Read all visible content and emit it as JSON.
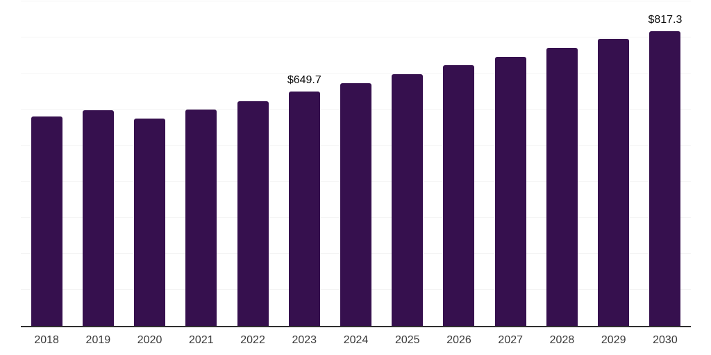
{
  "chart_data": {
    "type": "bar",
    "title": "",
    "xlabel": "",
    "ylabel": "",
    "categories": [
      "2018",
      "2019",
      "2020",
      "2021",
      "2022",
      "2023",
      "2024",
      "2025",
      "2026",
      "2027",
      "2028",
      "2029",
      "2030"
    ],
    "values": [
      580.0,
      598.5,
      574.5,
      599.5,
      623.0,
      649.7,
      673.5,
      698.5,
      724.0,
      747.0,
      771.5,
      796.5,
      817.3
    ],
    "data_labels": {
      "2023": "$649.7",
      "2030": "$817.3"
    },
    "ylim": [
      0,
      900
    ],
    "gridline_step": 100,
    "grid": true,
    "legend": false,
    "colors": {
      "bar": "#36104E",
      "gridline": "#f4f4f4",
      "axis_line": "#2f2f2f",
      "tick_label": "#3b3b3b",
      "data_label": "#0d0d0d",
      "background": "#ffffff"
    }
  }
}
